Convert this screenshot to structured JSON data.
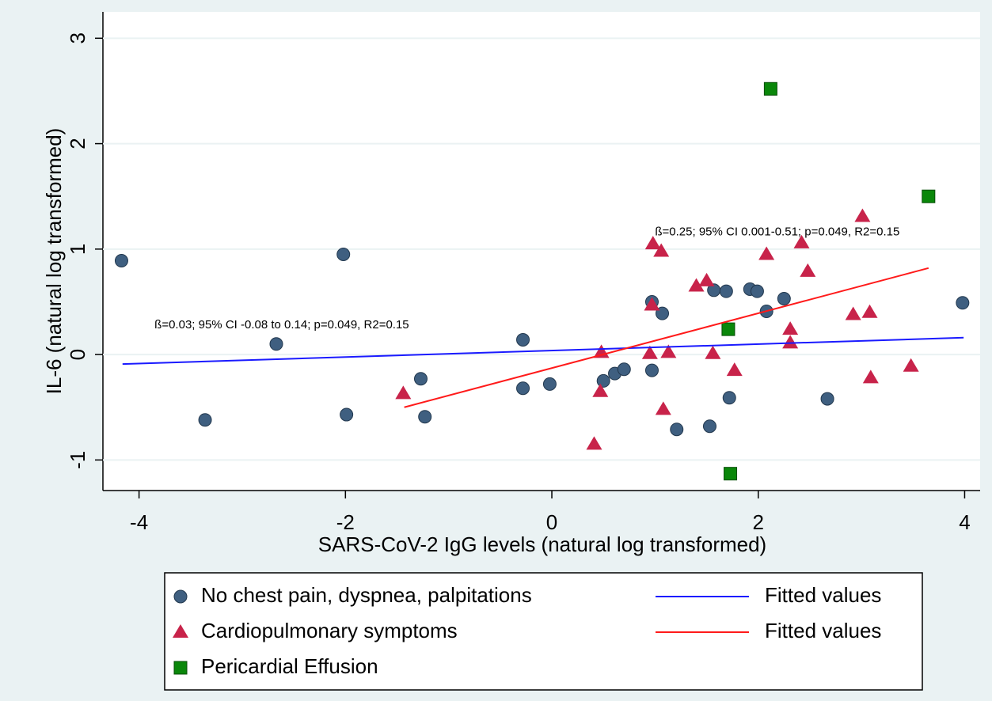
{
  "chart_data": {
    "type": "scatter",
    "xlabel": "SARS-CoV-2 IgG levels (natural log transformed)",
    "ylabel": "IL-6 (natural log transformed)",
    "xlim": [
      -4.35,
      4.15
    ],
    "ylim": [
      -1.29,
      3.25
    ],
    "xticks": [
      -4,
      -2,
      0,
      2,
      4
    ],
    "yticks": [
      -1,
      0,
      1,
      2,
      3
    ],
    "grid": true,
    "annotations": [
      {
        "text": "ß=0.25; 95% CI 0.001-0.51; p=0.049, R2=0.15",
        "x": 1.0,
        "y": 1.16
      },
      {
        "text": "ß=0.03; 95% CI -0.08 to 0.14; p=0.049, R2=0.15",
        "x": -3.85,
        "y": 0.28
      }
    ],
    "series": [
      {
        "name": "No chest pain, dyspnea, palpitations",
        "marker": "circle",
        "color": "#3f5f80",
        "x": [
          -4.17,
          -2.02,
          -2.67,
          -3.36,
          -1.99,
          -1.27,
          -1.23,
          -0.28,
          -0.28,
          -0.02,
          0.5,
          0.61,
          0.7,
          0.97,
          0.97,
          1.07,
          1.21,
          1.53,
          1.57,
          1.69,
          1.72,
          1.92,
          1.99,
          2.08,
          2.25,
          2.67,
          3.98
        ],
        "values": [
          0.89,
          0.95,
          0.1,
          -0.62,
          -0.57,
          -0.23,
          -0.59,
          0.14,
          -0.32,
          -0.28,
          -0.25,
          -0.18,
          -0.14,
          0.5,
          -0.15,
          0.39,
          -0.71,
          -0.68,
          0.61,
          0.6,
          -0.41,
          0.62,
          0.6,
          0.41,
          0.53,
          -0.42,
          0.49
        ]
      },
      {
        "name": "Cardiopulmonary symptoms",
        "marker": "triangle",
        "color": "#c8234a",
        "x": [
          -1.44,
          0.48,
          0.47,
          0.41,
          0.98,
          1.06,
          0.97,
          0.95,
          1.13,
          1.08,
          1.4,
          1.5,
          1.56,
          1.77,
          2.08,
          2.42,
          2.48,
          2.31,
          2.31,
          2.92,
          3.08,
          3.09,
          3.01,
          3.48
        ],
        "values": [
          -0.37,
          0.02,
          -0.35,
          -0.85,
          1.05,
          0.98,
          0.47,
          0.01,
          0.02,
          -0.52,
          0.65,
          0.7,
          0.01,
          -0.15,
          0.95,
          1.06,
          0.79,
          0.24,
          0.11,
          0.38,
          0.4,
          -0.22,
          1.31,
          -0.11
        ]
      },
      {
        "name": "Pericardial Effusion",
        "marker": "square",
        "color": "#0a870a",
        "x": [
          2.12,
          3.65,
          1.71,
          1.73
        ],
        "values": [
          2.52,
          1.5,
          0.24,
          -1.13
        ]
      },
      {
        "name": "Fitted values",
        "marker": "line",
        "color": "#1a1aff",
        "x": [
          -4.16,
          3.99
        ],
        "values": [
          -0.09,
          0.16
        ]
      },
      {
        "name": "Fitted values",
        "marker": "line",
        "color": "#ff1a1a",
        "x": [
          -1.43,
          3.65
        ],
        "values": [
          -0.5,
          0.82
        ]
      }
    ]
  }
}
